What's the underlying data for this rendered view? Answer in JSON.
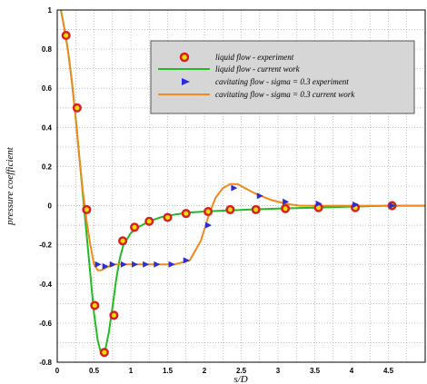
{
  "chart_data": {
    "type": "line",
    "xlabel": "s/D",
    "ylabel": "pressure coefficient",
    "xlim": [
      0,
      5
    ],
    "ylim": [
      -0.8,
      1
    ],
    "xticks": [
      0,
      0.5,
      1,
      1.5,
      2,
      2.5,
      3,
      3.5,
      4,
      4.5
    ],
    "yticks": [
      -0.8,
      -0.6,
      -0.4,
      -0.2,
      0,
      0.2,
      0.4,
      0.6,
      0.8,
      1
    ],
    "grid": "dotted",
    "legend_position": "top-right",
    "series": [
      {
        "name": "liquid flow - experiment",
        "style": "marker-circle",
        "color": "#d62020",
        "fill": "#f0e000",
        "x": [
          0.12,
          0.27,
          0.4,
          0.51,
          0.64,
          0.77,
          0.89,
          1.05,
          1.25,
          1.5,
          1.75,
          2.05,
          2.35,
          2.7,
          3.1,
          3.55,
          4.05,
          4.55
        ],
        "y": [
          0.87,
          0.5,
          -0.02,
          -0.51,
          -0.75,
          -0.56,
          -0.18,
          -0.11,
          -0.08,
          -0.06,
          -0.04,
          -0.03,
          -0.02,
          -0.02,
          -0.015,
          -0.01,
          -0.01,
          0.0
        ]
      },
      {
        "name": "liquid flow - current work",
        "style": "line",
        "color": "#22bb22",
        "x": [
          0.05,
          0.1,
          0.15,
          0.2,
          0.25,
          0.3,
          0.35,
          0.4,
          0.45,
          0.5,
          0.55,
          0.6,
          0.65,
          0.7,
          0.75,
          0.8,
          0.85,
          0.9,
          1.0,
          1.1,
          1.25,
          1.4,
          1.6,
          1.8,
          2.0,
          2.3,
          2.6,
          3.0,
          3.5,
          4.0,
          4.5,
          5.0
        ],
        "y": [
          1.0,
          0.9,
          0.78,
          0.63,
          0.45,
          0.25,
          0.05,
          -0.15,
          -0.35,
          -0.55,
          -0.69,
          -0.76,
          -0.74,
          -0.65,
          -0.52,
          -0.38,
          -0.27,
          -0.2,
          -0.14,
          -0.11,
          -0.08,
          -0.06,
          -0.045,
          -0.035,
          -0.03,
          -0.025,
          -0.02,
          -0.015,
          -0.01,
          -0.005,
          0.0,
          0.0
        ]
      },
      {
        "name": "cavitating flow - sigma = 0.3 experiment",
        "style": "marker-triangle",
        "color": "#2b2bd8",
        "x": [
          0.55,
          0.65,
          0.75,
          0.9,
          1.05,
          1.2,
          1.35,
          1.55,
          1.75,
          2.05,
          2.4,
          2.75,
          3.1,
          3.55,
          4.05,
          4.55
        ],
        "y": [
          -0.3,
          -0.31,
          -0.3,
          -0.3,
          -0.3,
          -0.3,
          -0.3,
          -0.3,
          -0.28,
          -0.1,
          0.09,
          0.05,
          0.02,
          0.01,
          0.005,
          0.0
        ]
      },
      {
        "name": "cavitating flow - sigma = 0.3 current work",
        "style": "line",
        "color": "#f08a1c",
        "x": [
          0.05,
          0.1,
          0.15,
          0.2,
          0.25,
          0.3,
          0.35,
          0.4,
          0.45,
          0.5,
          0.55,
          0.6,
          0.7,
          0.8,
          1.0,
          1.3,
          1.6,
          1.8,
          1.95,
          2.05,
          2.15,
          2.25,
          2.35,
          2.45,
          2.55,
          2.7,
          2.9,
          3.1,
          3.3,
          3.6,
          4.0,
          4.5,
          5.0
        ],
        "y": [
          1.0,
          0.9,
          0.78,
          0.63,
          0.45,
          0.25,
          0.07,
          -0.08,
          -0.2,
          -0.3,
          -0.33,
          -0.33,
          -0.31,
          -0.3,
          -0.3,
          -0.3,
          -0.3,
          -0.28,
          -0.18,
          -0.06,
          0.04,
          0.09,
          0.11,
          0.11,
          0.09,
          0.06,
          0.03,
          0.01,
          0.0,
          0.0,
          0.0,
          0.0,
          0.0
        ]
      }
    ]
  }
}
